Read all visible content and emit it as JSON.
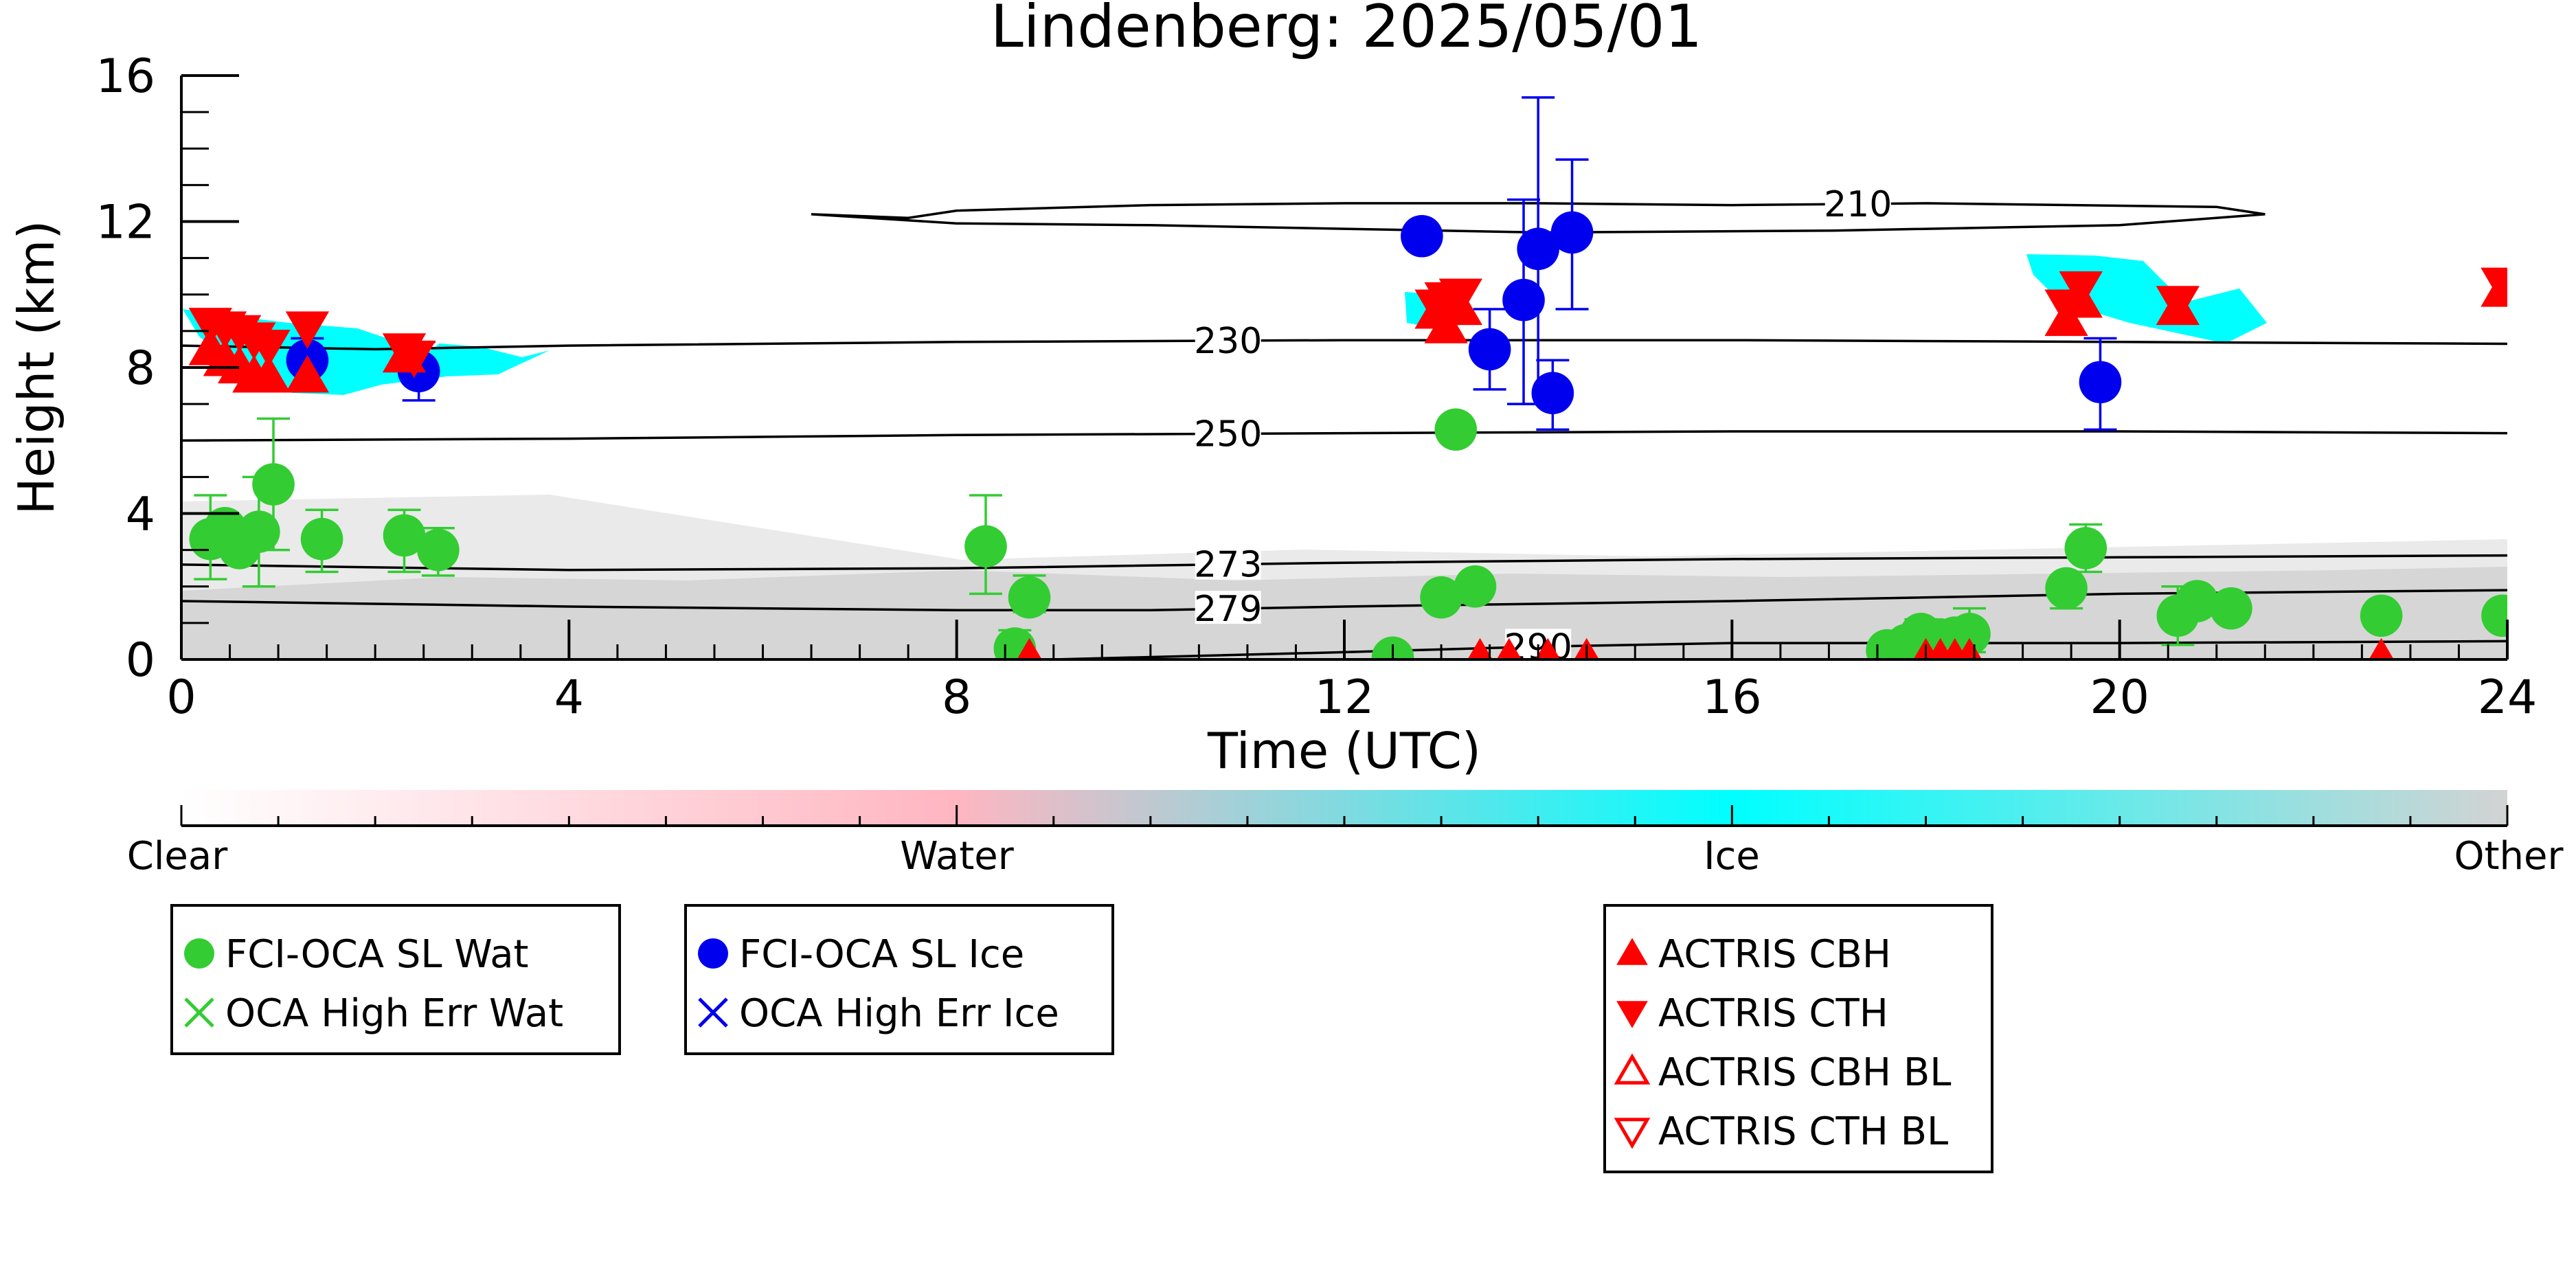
{
  "chart_data": {
    "type": "scatter",
    "title": "Lindenberg: 2025/05/01",
    "xlabel": "Time (UTC)",
    "ylabel": "Height (km)",
    "xlim": [
      0,
      24
    ],
    "ylim": [
      0,
      16
    ],
    "x_ticks": [
      0,
      4,
      8,
      12,
      16,
      20,
      24
    ],
    "y_ticks": [
      0,
      4,
      8,
      12,
      16
    ],
    "grid": false,
    "colorbar": {
      "labels": [
        "Clear",
        "Water",
        "Ice",
        "Other"
      ],
      "colors": [
        "#ffffff",
        "#ffb6c1",
        "#00ffff",
        "#d3d3d3"
      ]
    },
    "isotherms": [
      {
        "label": "210",
        "label_x": 17.3,
        "points": [
          [
            6.5,
            12.2
          ],
          [
            7.5,
            12.1
          ],
          [
            8,
            12.3
          ],
          [
            10,
            12.45
          ],
          [
            12,
            12.5
          ],
          [
            14,
            12.5
          ],
          [
            16,
            12.45
          ],
          [
            18,
            12.5
          ],
          [
            21,
            12.4
          ],
          [
            21.5,
            12.2
          ],
          [
            20,
            11.9
          ],
          [
            17,
            11.75
          ],
          [
            14,
            11.7
          ],
          [
            12,
            11.8
          ],
          [
            10,
            11.9
          ],
          [
            8,
            11.95
          ],
          [
            6.5,
            12.2
          ]
        ]
      },
      {
        "label": "230",
        "label_x": 10.8,
        "points": [
          [
            0,
            8.6
          ],
          [
            2,
            8.5
          ],
          [
            4,
            8.6
          ],
          [
            8,
            8.7
          ],
          [
            12,
            8.75
          ],
          [
            16,
            8.75
          ],
          [
            20,
            8.7
          ],
          [
            24,
            8.65
          ]
        ]
      },
      {
        "label": "250",
        "label_x": 10.8,
        "points": [
          [
            0,
            6.0
          ],
          [
            4,
            6.05
          ],
          [
            8,
            6.15
          ],
          [
            12,
            6.2
          ],
          [
            16,
            6.25
          ],
          [
            20,
            6.25
          ],
          [
            24,
            6.2
          ]
        ]
      },
      {
        "label": "273",
        "label_x": 10.8,
        "points": [
          [
            0,
            2.6
          ],
          [
            4,
            2.45
          ],
          [
            8,
            2.5
          ],
          [
            12,
            2.65
          ],
          [
            16,
            2.75
          ],
          [
            20,
            2.8
          ],
          [
            24,
            2.85
          ]
        ]
      },
      {
        "label": "279",
        "label_x": 10.8,
        "points": [
          [
            0,
            1.6
          ],
          [
            4,
            1.45
          ],
          [
            8,
            1.35
          ],
          [
            10,
            1.35
          ],
          [
            12,
            1.45
          ],
          [
            16,
            1.6
          ],
          [
            20,
            1.8
          ],
          [
            24,
            1.9
          ]
        ]
      },
      {
        "label": "290",
        "label_x": 14.0,
        "points": [
          [
            9,
            0.0
          ],
          [
            12,
            0.2
          ],
          [
            14,
            0.35
          ],
          [
            16,
            0.45
          ],
          [
            20,
            0.45
          ],
          [
            24,
            0.5
          ]
        ]
      }
    ],
    "series": [
      {
        "name": "FCI-OCA SL Wat",
        "color": "#33cc33",
        "marker": "circle",
        "points": [
          {
            "x": 0.3,
            "y": 3.3,
            "lo": 2.2,
            "hi": 4.5
          },
          {
            "x": 0.45,
            "y": 3.6
          },
          {
            "x": 0.6,
            "y": 3.05
          },
          {
            "x": 0.8,
            "y": 3.5,
            "lo": 2.0,
            "hi": 5.0
          },
          {
            "x": 0.95,
            "y": 4.8,
            "lo": 3.0,
            "hi": 6.6
          },
          {
            "x": 1.45,
            "y": 3.3,
            "lo": 2.4,
            "hi": 4.1
          },
          {
            "x": 2.3,
            "y": 3.4,
            "lo": 2.4,
            "hi": 4.1
          },
          {
            "x": 2.65,
            "y": 3.0,
            "lo": 2.3,
            "hi": 3.6
          },
          {
            "x": 8.3,
            "y": 3.1,
            "lo": 1.8,
            "hi": 4.5
          },
          {
            "x": 8.75,
            "y": 1.7,
            "lo": 1.3,
            "hi": 2.3
          },
          {
            "x": 8.6,
            "y": 0.3,
            "lo": 0.0,
            "hi": 0.8
          },
          {
            "x": 12.5,
            "y": 0.05
          },
          {
            "x": 13.0,
            "y": 1.7
          },
          {
            "x": 13.15,
            "y": 6.3
          },
          {
            "x": 13.35,
            "y": 2.0
          },
          {
            "x": 17.6,
            "y": 0.25
          },
          {
            "x": 17.8,
            "y": 0.4
          },
          {
            "x": 17.95,
            "y": 0.7,
            "lo": 0.3,
            "hi": 1.1
          },
          {
            "x": 18.15,
            "y": 0.55
          },
          {
            "x": 18.3,
            "y": 0.6
          },
          {
            "x": 18.45,
            "y": 0.7,
            "lo": 0.2,
            "hi": 1.4
          },
          {
            "x": 19.45,
            "y": 1.95,
            "lo": 1.4,
            "hi": 2.3
          },
          {
            "x": 19.65,
            "y": 3.05,
            "lo": 2.4,
            "hi": 3.7
          },
          {
            "x": 20.6,
            "y": 1.2,
            "lo": 0.4,
            "hi": 2.0
          },
          {
            "x": 20.8,
            "y": 1.6,
            "lo": 1.4,
            "hi": 1.8
          },
          {
            "x": 21.15,
            "y": 1.4
          },
          {
            "x": 22.7,
            "y": 1.2
          },
          {
            "x": 23.95,
            "y": 1.2
          }
        ]
      },
      {
        "name": "OCA High Err Wat",
        "color": "#33cc33",
        "marker": "x",
        "points": []
      },
      {
        "name": "FCI-OCA SL Ice",
        "color": "#0000ee",
        "marker": "circle",
        "points": [
          {
            "x": 1.3,
            "y": 8.2,
            "lo": 7.5,
            "hi": 8.8
          },
          {
            "x": 2.45,
            "y": 7.9,
            "lo": 7.1,
            "hi": 8.7
          },
          {
            "x": 12.8,
            "y": 11.6
          },
          {
            "x": 13.5,
            "y": 8.5,
            "lo": 7.4,
            "hi": 9.6
          },
          {
            "x": 13.85,
            "y": 9.85,
            "lo": 7.0,
            "hi": 12.6
          },
          {
            "x": 14.0,
            "y": 11.25,
            "lo": 7.0,
            "hi": 15.4
          },
          {
            "x": 14.15,
            "y": 7.3,
            "lo": 6.3,
            "hi": 8.2
          },
          {
            "x": 14.35,
            "y": 11.7,
            "lo": 9.6,
            "hi": 13.7
          },
          {
            "x": 19.8,
            "y": 7.6,
            "lo": 6.3,
            "hi": 8.8
          }
        ]
      },
      {
        "name": "OCA High Err Ice",
        "color": "#0000ee",
        "marker": "x",
        "points": []
      },
      {
        "name": "ACTRIS CBH",
        "color": "#ff0000",
        "marker": "triangle-up",
        "points": [
          {
            "x": 0.3,
            "y": 8.5
          },
          {
            "x": 0.45,
            "y": 8.2
          },
          {
            "x": 0.6,
            "y": 8.0
          },
          {
            "x": 0.75,
            "y": 7.75
          },
          {
            "x": 0.9,
            "y": 7.75
          },
          {
            "x": 1.3,
            "y": 7.75
          },
          {
            "x": 2.3,
            "y": 8.3
          },
          {
            "x": 12.95,
            "y": 9.5
          },
          {
            "x": 13.05,
            "y": 9.1
          },
          {
            "x": 13.2,
            "y": 9.6
          },
          {
            "x": 19.45,
            "y": 9.3
          },
          {
            "x": 19.6,
            "y": 9.8
          },
          {
            "x": 20.6,
            "y": 9.6
          },
          {
            "x": 23.95,
            "y": 10.1
          },
          {
            "x": 8.75,
            "y": 0.0
          },
          {
            "x": 13.4,
            "y": 0.0
          },
          {
            "x": 13.7,
            "y": 0.0
          },
          {
            "x": 14.1,
            "y": 0.0
          },
          {
            "x": 14.5,
            "y": 0.0
          },
          {
            "x": 18.0,
            "y": 0.0
          },
          {
            "x": 18.15,
            "y": 0.0
          },
          {
            "x": 18.3,
            "y": 0.0
          },
          {
            "x": 18.45,
            "y": 0.0
          },
          {
            "x": 22.7,
            "y": 0.0
          }
        ]
      },
      {
        "name": "ACTRIS CTH",
        "color": "#ff0000",
        "marker": "triangle-down",
        "points": [
          {
            "x": 0.3,
            "y": 9.2
          },
          {
            "x": 0.45,
            "y": 9.1
          },
          {
            "x": 0.6,
            "y": 9.0
          },
          {
            "x": 0.75,
            "y": 8.8
          },
          {
            "x": 0.9,
            "y": 8.6
          },
          {
            "x": 1.3,
            "y": 9.1
          },
          {
            "x": 2.3,
            "y": 8.5
          },
          {
            "x": 2.4,
            "y": 8.3
          },
          {
            "x": 12.95,
            "y": 9.7
          },
          {
            "x": 13.05,
            "y": 9.9
          },
          {
            "x": 13.2,
            "y": 10.0
          },
          {
            "x": 19.45,
            "y": 9.7
          },
          {
            "x": 19.6,
            "y": 10.2
          },
          {
            "x": 20.6,
            "y": 9.8
          },
          {
            "x": 23.95,
            "y": 10.3
          }
        ]
      },
      {
        "name": "ACTRIS CBH BL",
        "color": "#ff0000",
        "marker": "triangle-up-open",
        "points": []
      },
      {
        "name": "ACTRIS CTH BL",
        "color": "#ff0000",
        "marker": "triangle-down-open",
        "points": []
      }
    ],
    "legends": [
      {
        "position": "bottom-left",
        "entries": [
          "FCI-OCA SL Wat",
          "OCA High Err Wat"
        ]
      },
      {
        "position": "bottom-center-left",
        "entries": [
          "FCI-OCA SL Ice",
          "OCA High Err Ice"
        ]
      },
      {
        "position": "bottom-center-right",
        "entries": [
          "ACTRIS CBH",
          "ACTRIS CTH",
          "ACTRIS CBH BL",
          "ACTRIS CTH BL"
        ]
      }
    ]
  }
}
